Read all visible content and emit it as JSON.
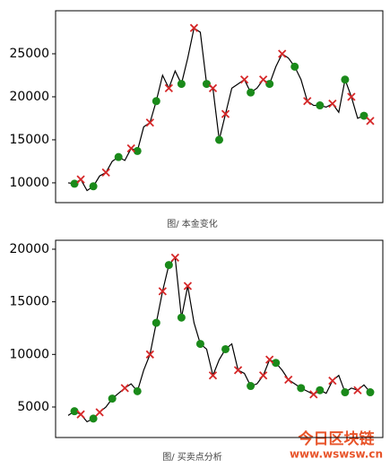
{
  "chart_data": [
    {
      "type": "line",
      "caption": "图/ 本金变化",
      "xlim": [
        -4,
        100
      ],
      "ylim": [
        7700,
        30000
      ],
      "yticks": [
        10000,
        15000,
        20000,
        25000
      ],
      "series": [
        {
          "style": "line",
          "color": "#000000",
          "x": [
            0,
            2,
            4,
            6,
            8,
            10,
            12,
            14,
            16,
            18,
            20,
            22,
            24,
            26,
            28,
            30,
            32,
            34,
            36,
            38,
            40,
            42,
            44,
            46,
            48,
            50,
            52,
            54,
            56,
            58,
            60,
            62,
            64,
            66,
            68,
            70,
            72,
            74,
            76,
            78,
            80,
            82,
            84,
            86,
            88,
            90,
            92,
            94,
            96
          ],
          "values": [
            10000,
            9900,
            10400,
            9100,
            9600,
            10800,
            11200,
            12500,
            13000,
            12600,
            14000,
            13700,
            16500,
            17000,
            19500,
            22500,
            21000,
            23000,
            21500,
            24500,
            28000,
            27500,
            21500,
            21000,
            15000,
            18000,
            21000,
            21500,
            22000,
            20500,
            21000,
            22000,
            21500,
            23500,
            25000,
            24500,
            23500,
            22000,
            19500,
            19000,
            19000,
            18800,
            19200,
            18200,
            22000,
            20000,
            17500,
            17800,
            17200
          ]
        },
        {
          "style": "dot",
          "color": "#1a8a1a",
          "x": [
            2,
            8,
            16,
            22,
            28,
            36,
            44,
            48,
            58,
            64,
            72,
            80,
            88,
            94
          ],
          "values": [
            9900,
            9600,
            13000,
            13700,
            19500,
            21500,
            21500,
            15000,
            20500,
            21500,
            23500,
            19000,
            22000,
            17800
          ]
        },
        {
          "style": "cross",
          "color": "#d62728",
          "x": [
            4,
            12,
            20,
            26,
            32,
            40,
            46,
            50,
            56,
            62,
            68,
            76,
            84,
            90,
            96
          ],
          "values": [
            10400,
            11200,
            14000,
            17000,
            21000,
            28000,
            21000,
            18000,
            22000,
            22000,
            25000,
            19500,
            19200,
            20000,
            17200
          ]
        }
      ]
    },
    {
      "type": "line",
      "caption": "图/ 买卖点分析",
      "xlim": [
        -4,
        100
      ],
      "ylim": [
        2100,
        20850
      ],
      "yticks": [
        5000,
        10000,
        15000,
        20000
      ],
      "series": [
        {
          "style": "line",
          "color": "#000000",
          "x": [
            0,
            2,
            4,
            6,
            8,
            10,
            12,
            14,
            16,
            18,
            20,
            22,
            24,
            26,
            28,
            30,
            32,
            34,
            36,
            38,
            40,
            42,
            44,
            46,
            48,
            50,
            52,
            54,
            56,
            58,
            60,
            62,
            64,
            66,
            68,
            70,
            72,
            74,
            76,
            78,
            80,
            82,
            84,
            86,
            88,
            90,
            92,
            94,
            96
          ],
          "values": [
            4200,
            4600,
            4300,
            3600,
            3900,
            4500,
            5000,
            5800,
            6300,
            6800,
            7200,
            6500,
            8500,
            10000,
            13000,
            16000,
            18500,
            19200,
            13500,
            16500,
            13000,
            11000,
            10500,
            8000,
            9500,
            10500,
            11000,
            8500,
            8200,
            7000,
            7200,
            8000,
            9500,
            9200,
            8500,
            7600,
            7200,
            6800,
            6500,
            6200,
            6600,
            6300,
            7500,
            8000,
            6400,
            6800,
            6600,
            7100,
            6400
          ]
        },
        {
          "style": "dot",
          "color": "#1a8a1a",
          "x": [
            2,
            8,
            14,
            22,
            28,
            32,
            36,
            42,
            50,
            58,
            66,
            74,
            80,
            88,
            96
          ],
          "values": [
            4600,
            3900,
            5800,
            6500,
            13000,
            18500,
            13500,
            11000,
            10500,
            7000,
            9200,
            6800,
            6600,
            6400,
            6400
          ]
        },
        {
          "style": "cross",
          "color": "#d62728",
          "x": [
            4,
            10,
            18,
            26,
            30,
            34,
            38,
            46,
            54,
            62,
            64,
            70,
            78,
            84,
            92
          ],
          "values": [
            4300,
            4500,
            6800,
            10000,
            16000,
            19200,
            16500,
            8000,
            8500,
            8000,
            9500,
            7600,
            6200,
            7500,
            6600
          ]
        }
      ]
    }
  ],
  "watermark": {
    "title": "今日区块链",
    "url": "www.wswsw.cn"
  }
}
